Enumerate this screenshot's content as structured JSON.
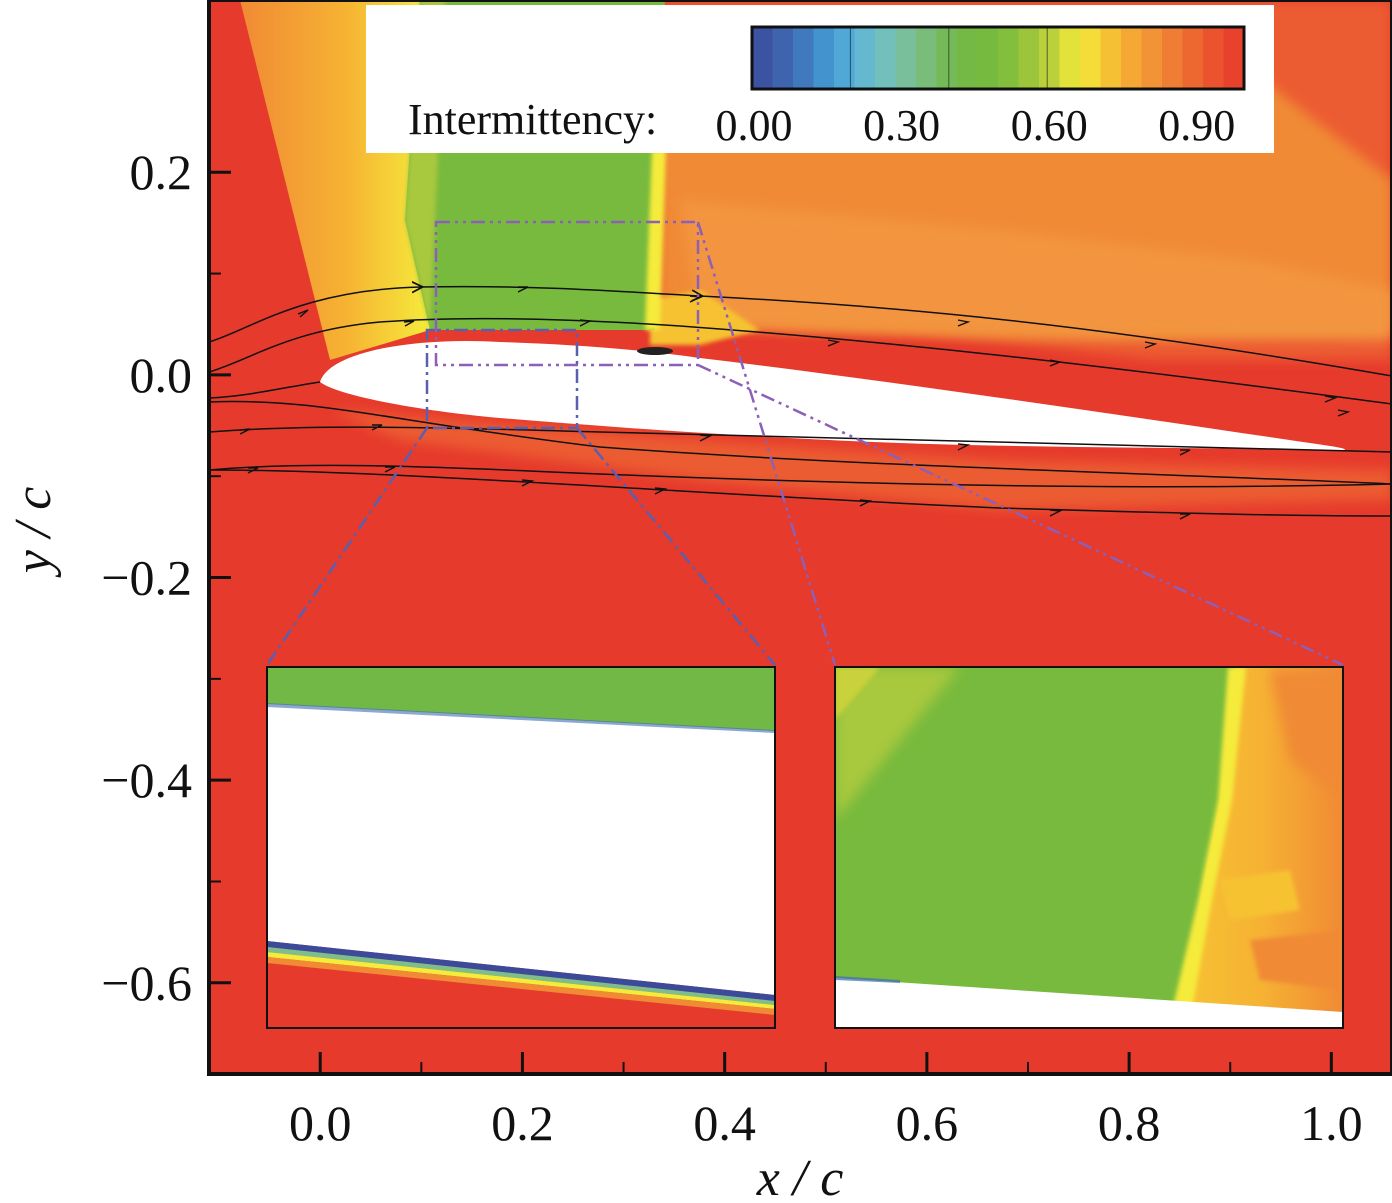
{
  "chart_data": {
    "type": "heatmap",
    "title": "",
    "xlabel": "x / c",
    "ylabel": "y / c",
    "xlim": [
      -0.11,
      1.06
    ],
    "ylim": [
      -0.69,
      0.37
    ],
    "x_ticks": [
      0.0,
      0.2,
      0.4,
      0.6,
      0.8,
      1.0
    ],
    "x_tick_labels": [
      "0.0",
      "0.2",
      "0.4",
      "0.6",
      "0.8",
      "1.0"
    ],
    "y_ticks": [
      0.2,
      0.0,
      -0.2,
      -0.4,
      -0.6
    ],
    "y_tick_labels": [
      "0.2",
      "0.0",
      "−0.2",
      "−0.4",
      "−0.6"
    ],
    "colorbar": {
      "label": "Intermittency:",
      "range": [
        0.0,
        1.0
      ],
      "tick_values": [
        0.0,
        0.3,
        0.6,
        0.9
      ],
      "tick_labels": [
        "0.00",
        "0.30",
        "0.60",
        "0.90"
      ],
      "colors": [
        "#3b4b9a",
        "#3f6cb5",
        "#44a0d8",
        "#6fc0cc",
        "#7cbf8c",
        "#72b847",
        "#78ba3d",
        "#a8c83c",
        "#f5eb3b",
        "#f6b233",
        "#f08a35",
        "#ec5b30",
        "#e63a2c"
      ]
    },
    "zoom_boxes": [
      {
        "name": "lower",
        "x": [
          0.105,
          0.255
        ],
        "y": [
          -0.05,
          0.048
        ]
      },
      {
        "name": "upper",
        "x": [
          0.112,
          0.375
        ],
        "y": [
          0.01,
          0.153
        ]
      }
    ],
    "streamlines_y_start": [
      0.034,
      0.003,
      -0.022,
      -0.052,
      -0.092
    ]
  }
}
